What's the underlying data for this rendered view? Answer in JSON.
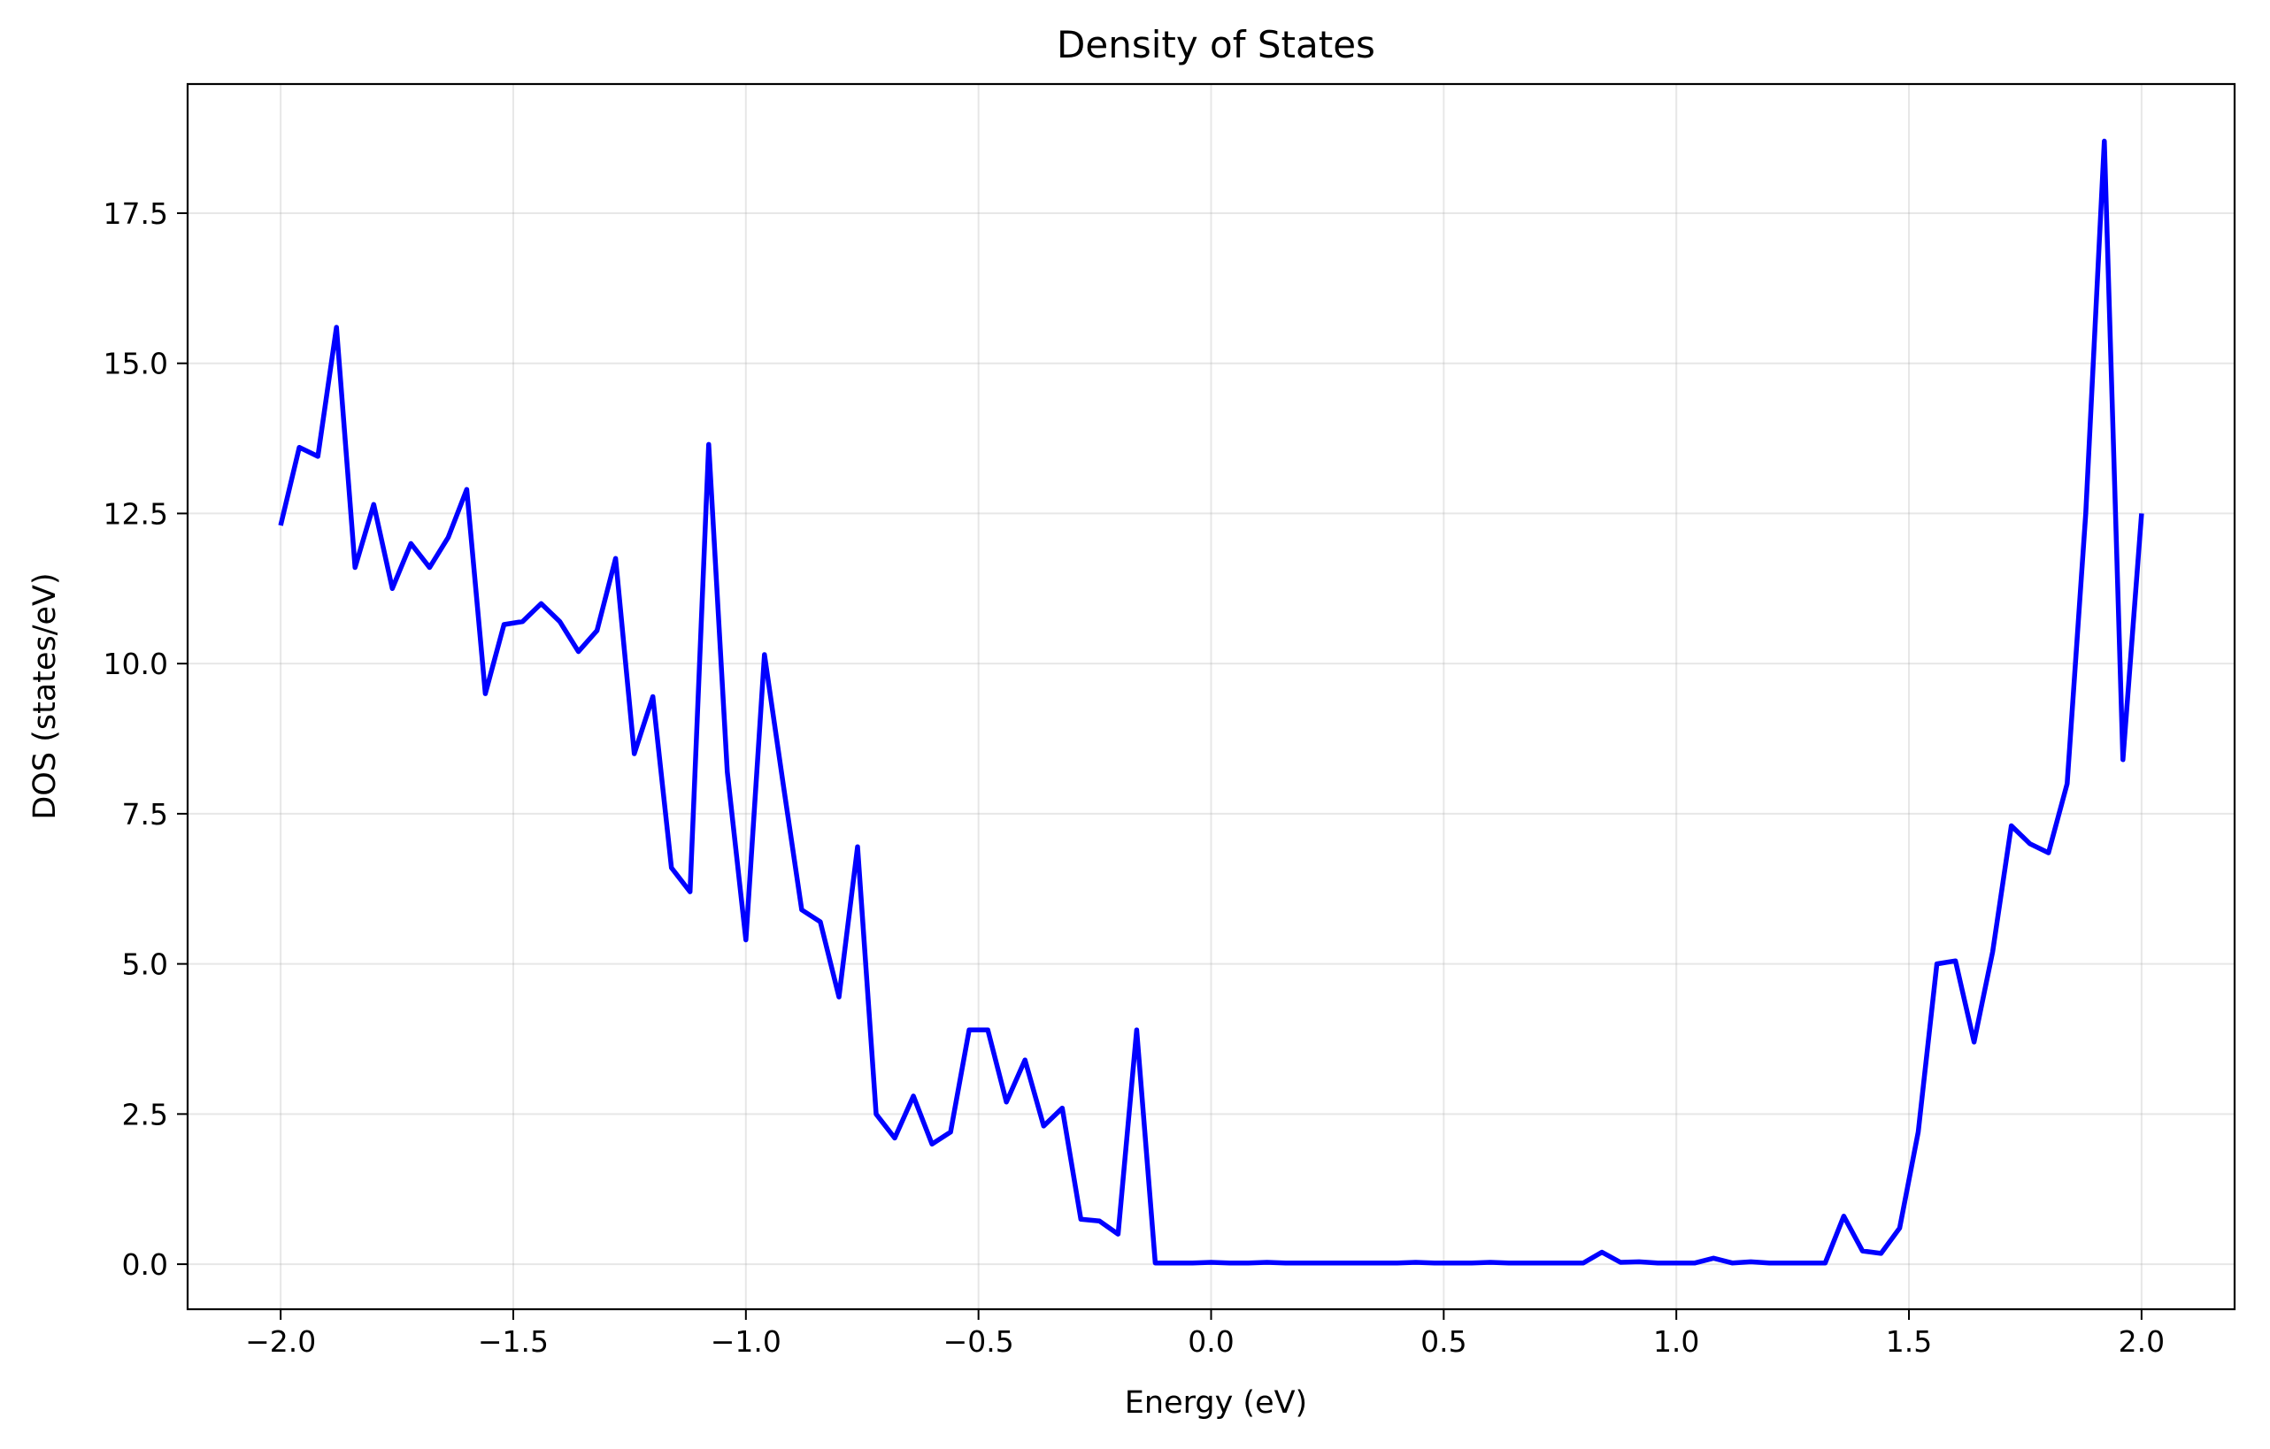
{
  "chart_data": {
    "type": "line",
    "title": "Density of States",
    "xlabel": "Energy (eV)",
    "ylabel": "DOS (states/eV)",
    "xlim": [
      -2.2,
      2.2
    ],
    "ylim": [
      -0.75,
      19.65
    ],
    "grid": true,
    "legend": "none",
    "xticks": [
      -2.0,
      -1.5,
      -1.0,
      -0.5,
      0.0,
      0.5,
      1.0,
      1.5,
      2.0
    ],
    "xtick_labels": [
      "−2.0",
      "−1.5",
      "−1.0",
      "−0.5",
      "0.0",
      "0.5",
      "1.0",
      "1.5",
      "2.0"
    ],
    "yticks": [
      0.0,
      2.5,
      5.0,
      7.5,
      10.0,
      12.5,
      15.0,
      17.5
    ],
    "ytick_labels": [
      "0.0",
      "2.5",
      "5.0",
      "7.5",
      "10.0",
      "12.5",
      "15.0",
      "17.5"
    ],
    "series": [
      {
        "color": "#0000ff",
        "x": [
          -2.0,
          -1.96,
          -1.92,
          -1.88,
          -1.84,
          -1.8,
          -1.76,
          -1.72,
          -1.68,
          -1.64,
          -1.6,
          -1.56,
          -1.52,
          -1.48,
          -1.44,
          -1.4,
          -1.36,
          -1.32,
          -1.28,
          -1.24,
          -1.2,
          -1.16,
          -1.12,
          -1.08,
          -1.04,
          -1.0,
          -0.96,
          -0.92,
          -0.88,
          -0.84,
          -0.8,
          -0.76,
          -0.72,
          -0.68,
          -0.64,
          -0.6,
          -0.56,
          -0.52,
          -0.48,
          -0.44,
          -0.4,
          -0.36,
          -0.32,
          -0.28,
          -0.24,
          -0.2,
          -0.16,
          -0.12,
          -0.08,
          -0.04,
          0.0,
          0.04,
          0.08,
          0.12,
          0.16,
          0.2,
          0.24,
          0.28,
          0.32,
          0.36,
          0.4,
          0.44,
          0.48,
          0.52,
          0.56,
          0.6,
          0.64,
          0.68,
          0.72,
          0.76,
          0.8,
          0.84,
          0.88,
          0.92,
          0.96,
          1.0,
          1.04,
          1.08,
          1.12,
          1.16,
          1.2,
          1.24,
          1.28,
          1.32,
          1.36,
          1.4,
          1.44,
          1.48,
          1.52,
          1.56,
          1.6,
          1.64,
          1.68,
          1.72,
          1.76,
          1.8,
          1.84,
          1.88,
          1.92,
          1.96,
          2.0
        ],
        "y": [
          12.3,
          13.6,
          13.45,
          15.6,
          11.6,
          12.65,
          11.25,
          12.0,
          11.6,
          12.1,
          12.9,
          9.5,
          10.65,
          10.7,
          11.0,
          10.7,
          10.2,
          10.55,
          11.75,
          8.5,
          9.45,
          6.6,
          6.2,
          13.65,
          8.2,
          5.4,
          10.15,
          8.0,
          5.9,
          5.7,
          4.45,
          6.95,
          2.5,
          2.1,
          2.8,
          2.0,
          2.2,
          3.9,
          3.9,
          2.7,
          3.4,
          2.3,
          2.6,
          0.75,
          0.72,
          0.5,
          3.9,
          0.02,
          0.02,
          0.02,
          0.03,
          0.02,
          0.02,
          0.03,
          0.02,
          0.02,
          0.02,
          0.02,
          0.02,
          0.02,
          0.02,
          0.03,
          0.02,
          0.02,
          0.02,
          0.03,
          0.02,
          0.02,
          0.02,
          0.02,
          0.02,
          0.2,
          0.03,
          0.04,
          0.02,
          0.02,
          0.02,
          0.1,
          0.02,
          0.04,
          0.02,
          0.02,
          0.02,
          0.02,
          0.8,
          0.22,
          0.18,
          0.6,
          2.2,
          5.0,
          5.05,
          3.7,
          5.2,
          7.3,
          7.0,
          6.85,
          8.0,
          12.5,
          18.7,
          8.4,
          12.5
        ]
      }
    ]
  }
}
